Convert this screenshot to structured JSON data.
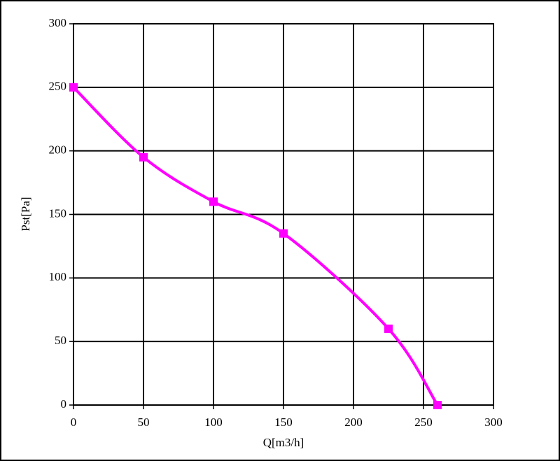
{
  "chart_data": {
    "type": "line",
    "x_label": "Q[m3/h]",
    "y_label": "Pst[Pa]",
    "x": [
      0,
      50,
      100,
      150,
      225,
      260
    ],
    "series": [
      {
        "color": "#ff00ff",
        "values": [
          250,
          195,
          160,
          135,
          60,
          0
        ]
      }
    ],
    "xlim": [
      0,
      300
    ],
    "xticks": [
      0,
      50,
      100,
      150,
      200,
      250,
      300
    ],
    "ylim": [
      0,
      300
    ],
    "yticks": [
      0,
      50,
      100,
      150,
      200,
      250,
      300
    ],
    "grid": true,
    "smooth": true
  }
}
